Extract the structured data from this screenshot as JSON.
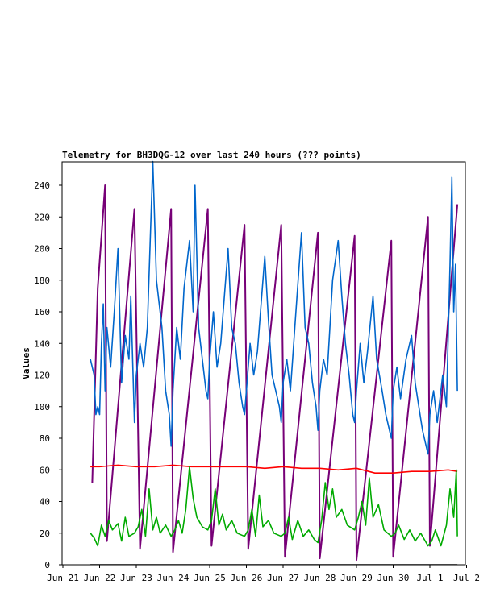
{
  "chart_data": {
    "type": "line",
    "title": "Telemetry for BH3DQG-12 over last 240 hours (??? points)",
    "ylabel": "Values",
    "xlabel": "",
    "ylim": [
      0,
      255
    ],
    "xlim": [
      "Jun 21",
      "Jul 2"
    ],
    "grid": false,
    "legend": "none",
    "x_ticks": [
      "Jun 21",
      "Jun 22",
      "Jun 23",
      "Jun 24",
      "Jun 25",
      "Jun 26",
      "Jun 27",
      "Jun 28",
      "Jun 29",
      "Jun 30",
      "Jul 1",
      "Jul 2"
    ],
    "y_ticks": [
      0,
      20,
      40,
      60,
      80,
      100,
      120,
      140,
      160,
      180,
      200,
      220,
      240
    ],
    "series": [
      {
        "color": "#770077",
        "points": [
          [
            21.8,
            52
          ],
          [
            21.95,
            175
          ],
          [
            22.15,
            240
          ],
          [
            22.2,
            15
          ],
          [
            22.95,
            225
          ],
          [
            23.1,
            10
          ],
          [
            23.95,
            225
          ],
          [
            24.0,
            8
          ],
          [
            24.95,
            225
          ],
          [
            25.05,
            12
          ],
          [
            25.95,
            215
          ],
          [
            26.05,
            10
          ],
          [
            26.95,
            215
          ],
          [
            27.05,
            5
          ],
          [
            27.95,
            210
          ],
          [
            28.0,
            4
          ],
          [
            28.95,
            208
          ],
          [
            29.0,
            3
          ],
          [
            29.95,
            205
          ],
          [
            30.0,
            5
          ],
          [
            30.95,
            220
          ],
          [
            31.0,
            12
          ],
          [
            31.75,
            228
          ]
        ]
      },
      {
        "color": "#0066cc",
        "points": [
          [
            21.75,
            130
          ],
          [
            21.85,
            120
          ],
          [
            21.9,
            95
          ],
          [
            21.95,
            100
          ],
          [
            22.0,
            95
          ],
          [
            22.05,
            140
          ],
          [
            22.1,
            165
          ],
          [
            22.15,
            110
          ],
          [
            22.2,
            150
          ],
          [
            22.3,
            125
          ],
          [
            22.4,
            160
          ],
          [
            22.5,
            200
          ],
          [
            22.6,
            115
          ],
          [
            22.7,
            145
          ],
          [
            22.8,
            130
          ],
          [
            22.85,
            170
          ],
          [
            22.95,
            90
          ],
          [
            23.0,
            120
          ],
          [
            23.1,
            140
          ],
          [
            23.2,
            125
          ],
          [
            23.3,
            150
          ],
          [
            23.45,
            255
          ],
          [
            23.55,
            180
          ],
          [
            23.7,
            150
          ],
          [
            23.8,
            110
          ],
          [
            23.9,
            95
          ],
          [
            23.95,
            75
          ],
          [
            24.0,
            110
          ],
          [
            24.1,
            150
          ],
          [
            24.2,
            130
          ],
          [
            24.3,
            175
          ],
          [
            24.45,
            205
          ],
          [
            24.55,
            160
          ],
          [
            24.6,
            240
          ],
          [
            24.7,
            150
          ],
          [
            24.8,
            130
          ],
          [
            24.9,
            110
          ],
          [
            24.95,
            105
          ],
          [
            25.0,
            130
          ],
          [
            25.1,
            160
          ],
          [
            25.2,
            125
          ],
          [
            25.3,
            140
          ],
          [
            25.5,
            200
          ],
          [
            25.6,
            150
          ],
          [
            25.7,
            140
          ],
          [
            25.8,
            115
          ],
          [
            25.9,
            100
          ],
          [
            25.95,
            95
          ],
          [
            26.0,
            110
          ],
          [
            26.1,
            140
          ],
          [
            26.2,
            120
          ],
          [
            26.3,
            135
          ],
          [
            26.5,
            195
          ],
          [
            26.6,
            155
          ],
          [
            26.7,
            120
          ],
          [
            26.8,
            110
          ],
          [
            26.9,
            100
          ],
          [
            26.95,
            90
          ],
          [
            27.0,
            115
          ],
          [
            27.1,
            130
          ],
          [
            27.2,
            110
          ],
          [
            27.35,
            160
          ],
          [
            27.5,
            210
          ],
          [
            27.6,
            150
          ],
          [
            27.7,
            140
          ],
          [
            27.8,
            115
          ],
          [
            27.9,
            100
          ],
          [
            27.95,
            85
          ],
          [
            28.0,
            110
          ],
          [
            28.1,
            130
          ],
          [
            28.2,
            120
          ],
          [
            28.35,
            180
          ],
          [
            28.5,
            205
          ],
          [
            28.6,
            170
          ],
          [
            28.7,
            140
          ],
          [
            28.8,
            120
          ],
          [
            28.9,
            95
          ],
          [
            28.95,
            90
          ],
          [
            29.0,
            110
          ],
          [
            29.1,
            140
          ],
          [
            29.2,
            115
          ],
          [
            29.3,
            135
          ],
          [
            29.45,
            170
          ],
          [
            29.55,
            130
          ],
          [
            29.7,
            110
          ],
          [
            29.8,
            95
          ],
          [
            29.9,
            85
          ],
          [
            29.95,
            80
          ],
          [
            30.0,
            110
          ],
          [
            30.1,
            125
          ],
          [
            30.2,
            105
          ],
          [
            30.35,
            130
          ],
          [
            30.5,
            145
          ],
          [
            30.6,
            115
          ],
          [
            30.7,
            100
          ],
          [
            30.8,
            85
          ],
          [
            30.9,
            75
          ],
          [
            30.95,
            70
          ],
          [
            31.0,
            95
          ],
          [
            31.1,
            110
          ],
          [
            31.2,
            90
          ],
          [
            31.35,
            120
          ],
          [
            31.45,
            100
          ],
          [
            31.55,
            190
          ],
          [
            31.6,
            245
          ],
          [
            31.65,
            160
          ],
          [
            31.7,
            190
          ],
          [
            31.75,
            110
          ]
        ]
      },
      {
        "color": "#ff0000",
        "points": [
          [
            21.75,
            62
          ],
          [
            22.0,
            62
          ],
          [
            22.5,
            63
          ],
          [
            23.0,
            62
          ],
          [
            23.5,
            62
          ],
          [
            24.0,
            63
          ],
          [
            24.5,
            62
          ],
          [
            25.0,
            62
          ],
          [
            25.5,
            62
          ],
          [
            26.0,
            62
          ],
          [
            26.5,
            61
          ],
          [
            27.0,
            62
          ],
          [
            27.5,
            61
          ],
          [
            28.0,
            61
          ],
          [
            28.5,
            60
          ],
          [
            29.0,
            61
          ],
          [
            29.5,
            58
          ],
          [
            30.0,
            58
          ],
          [
            30.5,
            59
          ],
          [
            31.0,
            59
          ],
          [
            31.5,
            60
          ],
          [
            31.75,
            59
          ]
        ]
      },
      {
        "color": "#00aa00",
        "points": [
          [
            21.75,
            20
          ],
          [
            21.85,
            17
          ],
          [
            21.95,
            12
          ],
          [
            22.05,
            25
          ],
          [
            22.15,
            18
          ],
          [
            22.25,
            28
          ],
          [
            22.35,
            22
          ],
          [
            22.5,
            26
          ],
          [
            22.6,
            15
          ],
          [
            22.7,
            30
          ],
          [
            22.8,
            18
          ],
          [
            22.95,
            20
          ],
          [
            23.05,
            24
          ],
          [
            23.15,
            35
          ],
          [
            23.25,
            18
          ],
          [
            23.35,
            48
          ],
          [
            23.45,
            22
          ],
          [
            23.55,
            30
          ],
          [
            23.65,
            20
          ],
          [
            23.8,
            25
          ],
          [
            23.95,
            18
          ],
          [
            24.05,
            22
          ],
          [
            24.15,
            28
          ],
          [
            24.25,
            20
          ],
          [
            24.35,
            35
          ],
          [
            24.45,
            62
          ],
          [
            24.55,
            42
          ],
          [
            24.65,
            30
          ],
          [
            24.8,
            24
          ],
          [
            24.95,
            22
          ],
          [
            25.05,
            28
          ],
          [
            25.15,
            48
          ],
          [
            25.25,
            25
          ],
          [
            25.35,
            32
          ],
          [
            25.45,
            22
          ],
          [
            25.6,
            28
          ],
          [
            25.75,
            20
          ],
          [
            25.95,
            18
          ],
          [
            26.05,
            22
          ],
          [
            26.15,
            35
          ],
          [
            26.25,
            18
          ],
          [
            26.35,
            44
          ],
          [
            26.45,
            24
          ],
          [
            26.6,
            28
          ],
          [
            26.75,
            20
          ],
          [
            26.95,
            18
          ],
          [
            27.05,
            20
          ],
          [
            27.15,
            30
          ],
          [
            27.25,
            16
          ],
          [
            27.4,
            28
          ],
          [
            27.55,
            18
          ],
          [
            27.7,
            22
          ],
          [
            27.85,
            16
          ],
          [
            27.95,
            14
          ],
          [
            28.05,
            28
          ],
          [
            28.15,
            52
          ],
          [
            28.25,
            35
          ],
          [
            28.35,
            48
          ],
          [
            28.45,
            30
          ],
          [
            28.6,
            35
          ],
          [
            28.75,
            25
          ],
          [
            28.95,
            22
          ],
          [
            29.05,
            30
          ],
          [
            29.15,
            40
          ],
          [
            29.25,
            25
          ],
          [
            29.35,
            55
          ],
          [
            29.45,
            30
          ],
          [
            29.6,
            38
          ],
          [
            29.75,
            22
          ],
          [
            29.95,
            18
          ],
          [
            30.05,
            20
          ],
          [
            30.15,
            25
          ],
          [
            30.3,
            16
          ],
          [
            30.45,
            22
          ],
          [
            30.6,
            15
          ],
          [
            30.75,
            20
          ],
          [
            30.9,
            14
          ],
          [
            30.95,
            12
          ],
          [
            31.05,
            15
          ],
          [
            31.15,
            22
          ],
          [
            31.3,
            12
          ],
          [
            31.45,
            25
          ],
          [
            31.55,
            48
          ],
          [
            31.65,
            30
          ],
          [
            31.72,
            60
          ],
          [
            31.75,
            18
          ]
        ]
      },
      {
        "color": "#000000",
        "points": [
          [
            21.75,
            0
          ],
          [
            31.75,
            0
          ]
        ]
      }
    ]
  }
}
